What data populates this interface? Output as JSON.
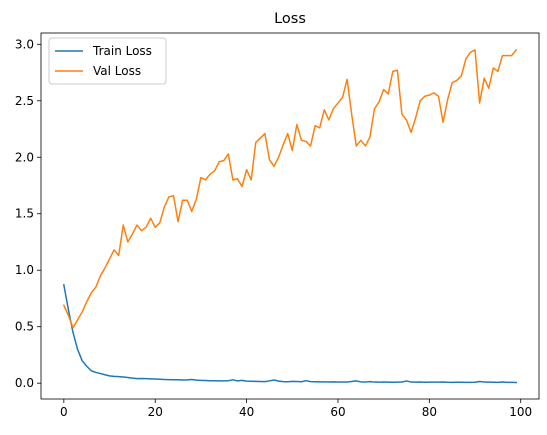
{
  "chart_data": {
    "type": "line",
    "title": "Loss",
    "xlabel": "",
    "ylabel": "",
    "xlim": [
      -5,
      104
    ],
    "ylim": [
      -0.14,
      3.1
    ],
    "xticks": [
      0,
      20,
      40,
      60,
      80,
      100
    ],
    "xtick_labels": [
      "0",
      "20",
      "40",
      "60",
      "80",
      "100"
    ],
    "yticks": [
      0.0,
      0.5,
      1.0,
      1.5,
      2.0,
      2.5,
      3.0
    ],
    "ytick_labels": [
      "0.0",
      "0.5",
      "1.0",
      "1.5",
      "2.0",
      "2.5",
      "3.0"
    ],
    "grid": false,
    "legend": "upper-left",
    "x": [
      0,
      1,
      2,
      3,
      4,
      5,
      6,
      7,
      8,
      9,
      10,
      11,
      12,
      13,
      14,
      15,
      16,
      17,
      18,
      19,
      20,
      21,
      22,
      23,
      24,
      25,
      26,
      27,
      28,
      29,
      30,
      31,
      32,
      33,
      34,
      35,
      36,
      37,
      38,
      39,
      40,
      41,
      42,
      43,
      44,
      45,
      46,
      47,
      48,
      49,
      50,
      51,
      52,
      53,
      54,
      55,
      56,
      57,
      58,
      59,
      60,
      61,
      62,
      63,
      64,
      65,
      66,
      67,
      68,
      69,
      70,
      71,
      72,
      73,
      74,
      75,
      76,
      77,
      78,
      79,
      80,
      81,
      82,
      83,
      84,
      85,
      86,
      87,
      88,
      89,
      90,
      91,
      92,
      93,
      94,
      95,
      96,
      97,
      98,
      99
    ],
    "series": [
      {
        "name": "Train Loss",
        "color": "#1f77b4",
        "values": [
          0.87,
          0.65,
          0.45,
          0.3,
          0.2,
          0.15,
          0.11,
          0.095,
          0.085,
          0.075,
          0.065,
          0.06,
          0.058,
          0.055,
          0.05,
          0.045,
          0.04,
          0.042,
          0.04,
          0.038,
          0.037,
          0.035,
          0.033,
          0.032,
          0.03,
          0.03,
          0.028,
          0.029,
          0.033,
          0.027,
          0.025,
          0.024,
          0.022,
          0.021,
          0.02,
          0.02,
          0.022,
          0.03,
          0.02,
          0.025,
          0.018,
          0.017,
          0.016,
          0.015,
          0.014,
          0.02,
          0.028,
          0.018,
          0.014,
          0.013,
          0.016,
          0.015,
          0.013,
          0.022,
          0.014,
          0.013,
          0.012,
          0.012,
          0.011,
          0.012,
          0.011,
          0.011,
          0.01,
          0.015,
          0.02,
          0.012,
          0.01,
          0.014,
          0.01,
          0.009,
          0.01,
          0.009,
          0.008,
          0.009,
          0.01,
          0.02,
          0.01,
          0.009,
          0.01,
          0.008,
          0.009,
          0.009,
          0.009,
          0.01,
          0.008,
          0.007,
          0.008,
          0.008,
          0.007,
          0.007,
          0.008,
          0.015,
          0.01,
          0.009,
          0.008,
          0.007,
          0.01,
          0.007,
          0.007,
          0.006
        ]
      },
      {
        "name": "Val Loss",
        "color": "#ff7f0e",
        "values": [
          0.69,
          0.6,
          0.49,
          0.56,
          0.63,
          0.72,
          0.8,
          0.85,
          0.95,
          1.02,
          1.1,
          1.18,
          1.13,
          1.4,
          1.25,
          1.32,
          1.4,
          1.35,
          1.38,
          1.46,
          1.38,
          1.42,
          1.56,
          1.65,
          1.66,
          1.43,
          1.62,
          1.62,
          1.52,
          1.63,
          1.82,
          1.8,
          1.85,
          1.88,
          1.96,
          1.97,
          2.03,
          1.8,
          1.81,
          1.74,
          1.89,
          1.8,
          2.13,
          2.17,
          2.21,
          1.98,
          1.92,
          2.0,
          2.11,
          2.21,
          2.06,
          2.29,
          2.15,
          2.14,
          2.1,
          2.28,
          2.26,
          2.42,
          2.33,
          2.43,
          2.48,
          2.53,
          2.69,
          2.38,
          2.1,
          2.15,
          2.1,
          2.18,
          2.43,
          2.49,
          2.6,
          2.56,
          2.76,
          2.77,
          2.38,
          2.33,
          2.22,
          2.35,
          2.5,
          2.54,
          2.55,
          2.57,
          2.54,
          2.31,
          2.51,
          2.66,
          2.68,
          2.72,
          2.87,
          2.93,
          2.95,
          2.48,
          2.7,
          2.61,
          2.79,
          2.76,
          2.9,
          2.9,
          2.9,
          2.95
        ]
      }
    ]
  }
}
